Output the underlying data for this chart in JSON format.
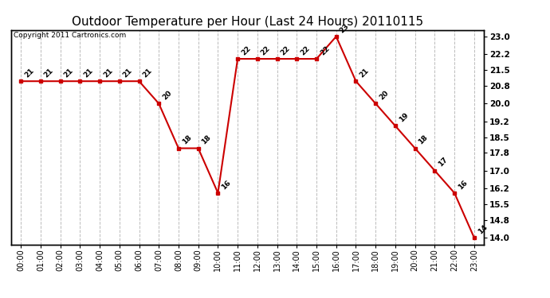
{
  "title": "Outdoor Temperature per Hour (Last 24 Hours) 20110115",
  "copyright": "Copyright 2011 Cartronics.com",
  "hours": [
    "00:00",
    "01:00",
    "02:00",
    "03:00",
    "04:00",
    "05:00",
    "06:00",
    "07:00",
    "08:00",
    "09:00",
    "10:00",
    "11:00",
    "12:00",
    "13:00",
    "14:00",
    "15:00",
    "16:00",
    "17:00",
    "18:00",
    "19:00",
    "20:00",
    "21:00",
    "22:00",
    "23:00"
  ],
  "temperatures": [
    21,
    21,
    21,
    21,
    21,
    21,
    21,
    20,
    18,
    18,
    16,
    22,
    22,
    22,
    22,
    22,
    23,
    21,
    20,
    19,
    18,
    17,
    16,
    14
  ],
  "yticks": [
    14.0,
    14.8,
    15.5,
    16.2,
    17.0,
    17.8,
    18.5,
    19.2,
    20.0,
    20.8,
    21.5,
    22.2,
    23.0
  ],
  "ymin": 13.7,
  "ymax": 23.3,
  "line_color": "#cc0000",
  "marker_color": "#cc0000",
  "bg_color": "#ffffff",
  "grid_color": "#bbbbbb",
  "title_fontsize": 11,
  "label_fontsize": 7,
  "annot_fontsize": 6.5,
  "copyright_fontsize": 6.5
}
